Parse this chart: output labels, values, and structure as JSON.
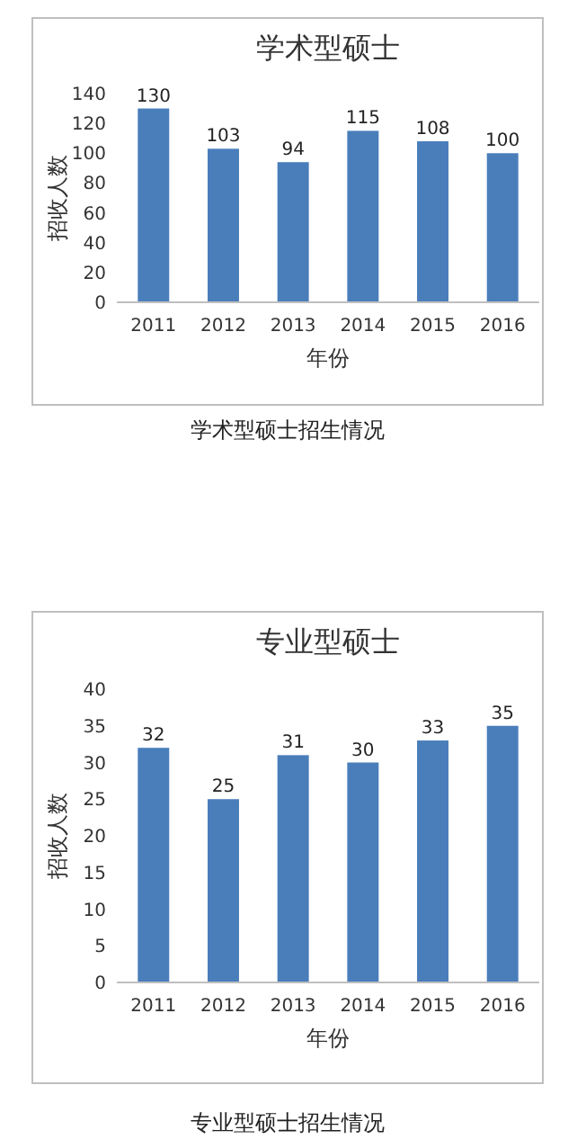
{
  "chart_data": [
    {
      "type": "bar",
      "title": "学术型硕士",
      "xlabel": "年份",
      "ylabel": "招收人数",
      "categories": [
        "2011",
        "2012",
        "2013",
        "2014",
        "2015",
        "2016"
      ],
      "values": [
        130,
        103,
        94,
        115,
        108,
        100
      ],
      "color": "#4a7ebb",
      "ylim": [
        0,
        140
      ],
      "yticks": [
        0,
        20,
        40,
        60,
        80,
        100,
        120,
        140
      ],
      "data_labels": true,
      "annotations": [
        "学术型硕士招生情况"
      ]
    },
    {
      "type": "bar",
      "title": "专业型硕士",
      "xlabel": "年份",
      "ylabel": "招收人数",
      "categories": [
        "2011",
        "2012",
        "2013",
        "2014",
        "2015",
        "2016"
      ],
      "values": [
        32,
        25,
        31,
        30,
        33,
        35
      ],
      "color": "#4a7ebb",
      "ylim": [
        0,
        40
      ],
      "yticks": [
        0,
        5,
        10,
        15,
        20,
        25,
        30,
        35,
        40
      ],
      "data_labels": true,
      "annotations": [
        "专业型硕士招生情况"
      ]
    }
  ]
}
